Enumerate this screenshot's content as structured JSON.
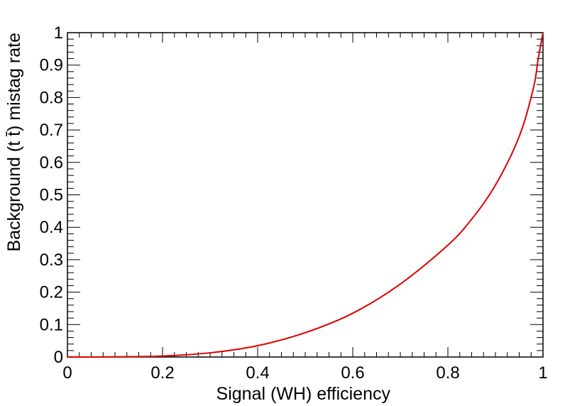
{
  "chart_data": {
    "type": "line",
    "title": "",
    "xlabel": "Signal (WH) efficiency",
    "ylabel": "Background (t t̄) mistag rate",
    "xlim": [
      0,
      1
    ],
    "ylim": [
      0,
      1
    ],
    "x_ticks": [
      "0",
      "0.2",
      "0.4",
      "0.6",
      "0.8",
      "1"
    ],
    "y_ticks": [
      "0",
      "0.1",
      "0.2",
      "0.3",
      "0.4",
      "0.5",
      "0.6",
      "0.7",
      "0.8",
      "0.9",
      "1"
    ],
    "grid": false,
    "legend": "none",
    "series": [
      {
        "color": "#dd0000",
        "x": [
          0,
          0.1,
          0.2,
          0.3,
          0.4,
          0.5,
          0.6,
          0.7,
          0.8,
          0.85,
          0.9,
          0.95,
          0.98,
          0.99,
          1.0
        ],
        "y": [
          0,
          0.0005,
          0.003,
          0.013,
          0.035,
          0.075,
          0.135,
          0.225,
          0.345,
          0.425,
          0.53,
          0.68,
          0.83,
          0.92,
          1.0
        ]
      }
    ]
  }
}
